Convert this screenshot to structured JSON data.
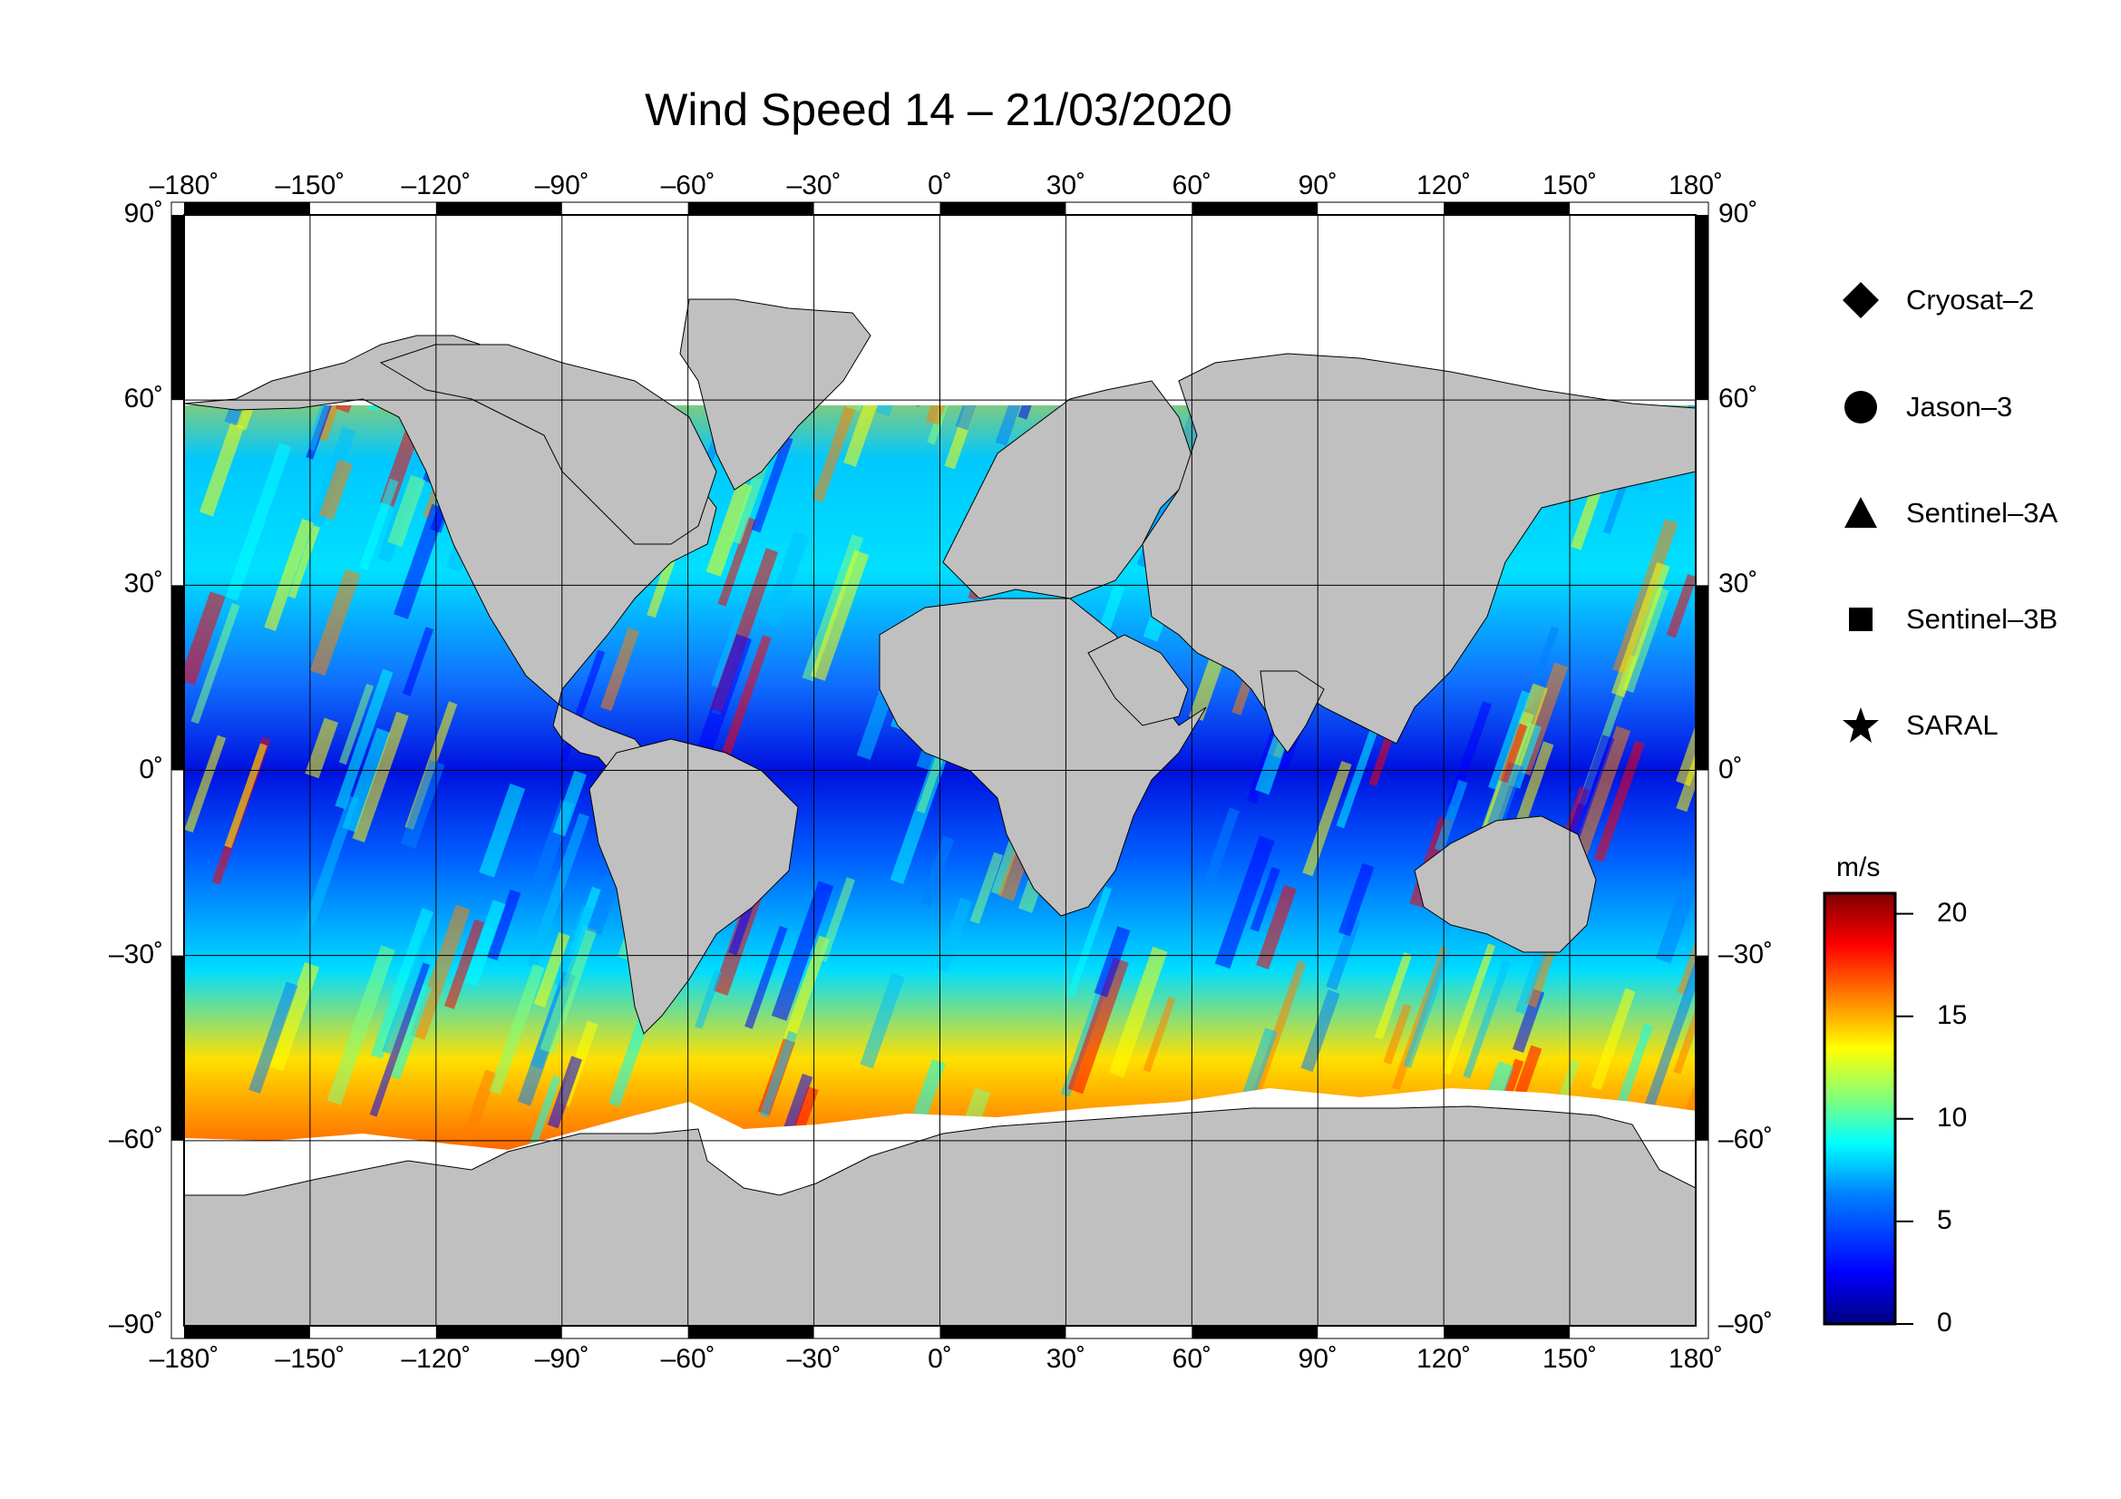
{
  "title": "Wind Speed 14 – 21/03/2020",
  "x_tick_labels": [
    "–180˚",
    "–150˚",
    "–120˚",
    "–90˚",
    "–60˚",
    "–30˚",
    "0˚",
    "30˚",
    "60˚",
    "90˚",
    "120˚",
    "150˚",
    "180˚"
  ],
  "y_tick_labels_left": [
    "90˚",
    "60˚",
    "30˚",
    "0˚",
    "–30˚",
    "–60˚",
    "–90˚"
  ],
  "y_tick_labels_right": [
    "90˚",
    "60˚",
    "30˚",
    "0˚",
    "–30˚",
    "–60˚",
    "–90˚"
  ],
  "legend": [
    {
      "label": "Cryosat–2",
      "symbol": "diamond"
    },
    {
      "label": "Jason–3",
      "symbol": "circle"
    },
    {
      "label": "Sentinel–3A",
      "symbol": "triangle"
    },
    {
      "label": "Sentinel–3B",
      "symbol": "square"
    },
    {
      "label": "SARAL",
      "symbol": "star"
    }
  ],
  "colorbar": {
    "unit": "m/s",
    "ticks": [
      "20",
      "15",
      "10",
      "5",
      "0"
    ],
    "min": 0,
    "max": 21,
    "colors": [
      "#00007f",
      "#0000ff",
      "#007fff",
      "#00ffff",
      "#7fff7f",
      "#ffff00",
      "#ff7f00",
      "#ff0000",
      "#7f0000"
    ]
  },
  "colors": {
    "land": "#c0c0c0",
    "ice": "#ffffff",
    "grid": "#000000"
  }
}
